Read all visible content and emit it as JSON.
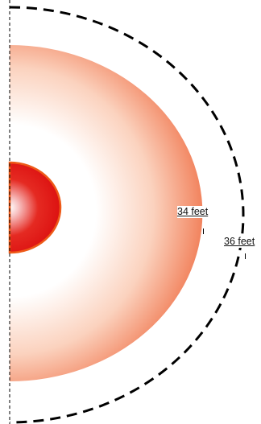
{
  "labels": {
    "inner_radius": "34 feet",
    "outer_radius": "36 feet"
  },
  "colors": {
    "core_fill": "#e01010",
    "core_stroke": "#f06010",
    "zone_edge": "#f08060",
    "zone_center": "#ffffff",
    "boundary": "#000000"
  }
}
